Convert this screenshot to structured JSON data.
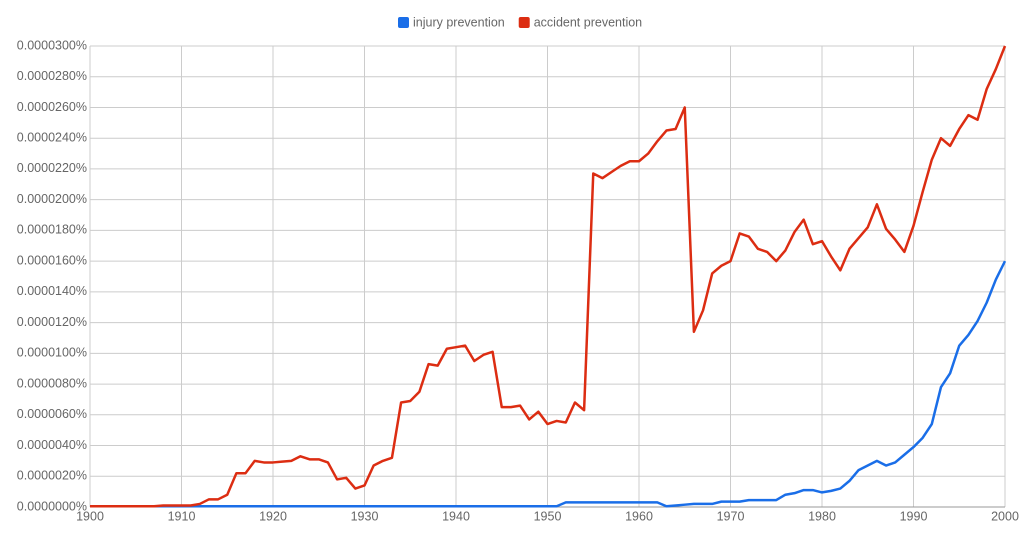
{
  "chart_data": {
    "type": "line",
    "x": [
      1900,
      1901,
      1902,
      1903,
      1904,
      1905,
      1906,
      1907,
      1908,
      1909,
      1910,
      1911,
      1912,
      1913,
      1914,
      1915,
      1916,
      1917,
      1918,
      1919,
      1920,
      1921,
      1922,
      1923,
      1924,
      1925,
      1926,
      1927,
      1928,
      1929,
      1930,
      1931,
      1932,
      1933,
      1934,
      1935,
      1936,
      1937,
      1938,
      1939,
      1940,
      1941,
      1942,
      1943,
      1944,
      1945,
      1946,
      1947,
      1948,
      1949,
      1950,
      1951,
      1952,
      1953,
      1954,
      1955,
      1956,
      1957,
      1958,
      1959,
      1960,
      1961,
      1962,
      1963,
      1964,
      1965,
      1966,
      1967,
      1968,
      1969,
      1970,
      1971,
      1972,
      1973,
      1974,
      1975,
      1976,
      1977,
      1978,
      1979,
      1980,
      1981,
      1982,
      1983,
      1984,
      1985,
      1986,
      1987,
      1988,
      1989,
      1990,
      1991,
      1992,
      1993,
      1994,
      1995,
      1996,
      1997,
      1998,
      1999,
      2000
    ],
    "series": [
      {
        "name": "injury prevention",
        "color": "#1a6ee8",
        "values": [
          5e-08,
          5e-08,
          5e-08,
          5e-08,
          5e-08,
          5e-08,
          5e-08,
          5e-08,
          5e-08,
          5e-08,
          5e-08,
          5e-08,
          5e-08,
          5e-08,
          5e-08,
          5e-08,
          5e-08,
          5e-08,
          5e-08,
          5e-08,
          5e-08,
          5e-08,
          5e-08,
          5e-08,
          5e-08,
          5e-08,
          5e-08,
          5e-08,
          5e-08,
          5e-08,
          5e-08,
          5e-08,
          5e-08,
          5e-08,
          5e-08,
          5e-08,
          5e-08,
          5e-08,
          5e-08,
          5e-08,
          5e-08,
          5e-08,
          5e-08,
          5e-08,
          5e-08,
          5e-08,
          5e-08,
          5e-08,
          5e-08,
          5e-08,
          5e-08,
          5e-08,
          3e-07,
          3e-07,
          3e-07,
          3e-07,
          3e-07,
          3e-07,
          3e-07,
          3e-07,
          3e-07,
          3e-07,
          3e-07,
          5e-08,
          1e-07,
          1.5e-07,
          2e-07,
          2e-07,
          2e-07,
          3.5e-07,
          3.5e-07,
          3.5e-07,
          4.5e-07,
          4.5e-07,
          4.5e-07,
          4.5e-07,
          8e-07,
          9e-07,
          1.1e-06,
          1.1e-06,
          9.5e-07,
          1.05e-06,
          1.2e-06,
          1.7e-06,
          2.4e-06,
          2.7e-06,
          3e-06,
          2.7e-06,
          2.9e-06,
          3.4e-06,
          3.9e-06,
          4.5e-06,
          5.4e-06,
          7.8e-06,
          8.7e-06,
          1.05e-05,
          1.12e-05,
          1.21e-05,
          1.33e-05,
          1.48e-05,
          1.6e-05
        ]
      },
      {
        "name": "accident prevention",
        "color": "#dc2d12",
        "values": [
          5e-08,
          5e-08,
          5e-08,
          5e-08,
          5e-08,
          5e-08,
          5e-08,
          5e-08,
          1e-07,
          1e-07,
          1e-07,
          1e-07,
          2e-07,
          5e-07,
          5e-07,
          8e-07,
          2.2e-06,
          2.2e-06,
          3e-06,
          2.9e-06,
          2.9e-06,
          2.95e-06,
          3e-06,
          3.3e-06,
          3.1e-06,
          3.1e-06,
          2.9e-06,
          1.8e-06,
          1.9e-06,
          1.2e-06,
          1.4e-06,
          2.7e-06,
          3e-06,
          3.2e-06,
          6.8e-06,
          6.9e-06,
          7.5e-06,
          9.3e-06,
          9.2e-06,
          1.03e-05,
          1.04e-05,
          1.05e-05,
          9.5e-06,
          9.9e-06,
          1.01e-05,
          6.5e-06,
          6.5e-06,
          6.6e-06,
          5.7e-06,
          6.2e-06,
          5.4e-06,
          5.6e-06,
          5.5e-06,
          6.8e-06,
          6.3e-06,
          2.17e-05,
          2.14e-05,
          2.18e-05,
          2.22e-05,
          2.25e-05,
          2.25e-05,
          2.3e-05,
          2.38e-05,
          2.45e-05,
          2.46e-05,
          2.6e-05,
          1.14e-05,
          1.28e-05,
          1.52e-05,
          1.57e-05,
          1.6e-05,
          1.78e-05,
          1.76e-05,
          1.68e-05,
          1.66e-05,
          1.6e-05,
          1.67e-05,
          1.79e-05,
          1.87e-05,
          1.71e-05,
          1.73e-05,
          1.63e-05,
          1.54e-05,
          1.68e-05,
          1.75e-05,
          1.82e-05,
          1.97e-05,
          1.81e-05,
          1.74e-05,
          1.66e-05,
          1.83e-05,
          2.05e-05,
          2.26e-05,
          2.4e-05,
          2.35e-05,
          2.46e-05,
          2.55e-05,
          2.52e-05,
          2.72e-05,
          2.85e-05,
          3e-05
        ]
      }
    ],
    "xlim": [
      1900,
      2000
    ],
    "xticks": [
      1900,
      1910,
      1920,
      1930,
      1940,
      1950,
      1960,
      1970,
      1980,
      1990,
      2000
    ],
    "ylim": [
      0,
      3e-05
    ],
    "yticks": [
      {
        "value": 0,
        "label": "0.0000000%"
      },
      {
        "value": 2e-06,
        "label": "0.0000020%"
      },
      {
        "value": 4e-06,
        "label": "0.0000040%"
      },
      {
        "value": 6e-06,
        "label": "0.0000060%"
      },
      {
        "value": 8e-06,
        "label": "0.0000080%"
      },
      {
        "value": 1e-05,
        "label": "0.0000100%"
      },
      {
        "value": 1.2e-05,
        "label": "0.0000120%"
      },
      {
        "value": 1.4e-05,
        "label": "0.0000140%"
      },
      {
        "value": 1.6e-05,
        "label": "0.0000160%"
      },
      {
        "value": 1.8e-05,
        "label": "0.0000180%"
      },
      {
        "value": 2e-05,
        "label": "0.0000200%"
      },
      {
        "value": 2.2e-05,
        "label": "0.0000220%"
      },
      {
        "value": 2.4e-05,
        "label": "0.0000240%"
      },
      {
        "value": 2.6e-05,
        "label": "0.0000260%"
      },
      {
        "value": 2.8e-05,
        "label": "0.0000280%"
      },
      {
        "value": 3e-05,
        "label": "0.0000300%"
      }
    ],
    "grid": true,
    "legend": "top"
  }
}
